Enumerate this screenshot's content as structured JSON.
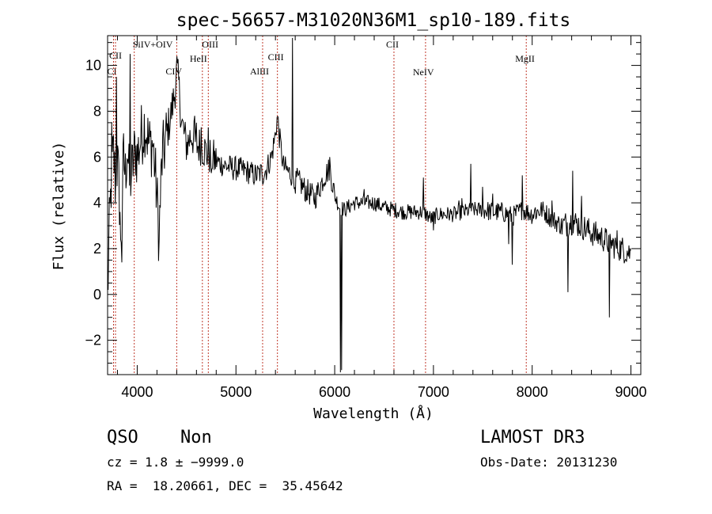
{
  "chart_data": {
    "type": "line",
    "title": "spec-56657-M31020N36M1_sp10-189.fits",
    "xlabel": "Wavelength (Å)",
    "ylabel": "Flux (relative)",
    "xlim": [
      3700,
      9100
    ],
    "ylim": [
      -3.5,
      11.3
    ],
    "xticks": [
      4000,
      5000,
      6000,
      7000,
      8000,
      9000
    ],
    "yticks": [
      -2,
      0,
      2,
      4,
      6,
      8,
      10
    ],
    "tick_labels_x": [
      "4000",
      "5000",
      "6000",
      "7000",
      "8000",
      "9000"
    ],
    "tick_labels_y": [
      "−2",
      "0",
      "2",
      "4",
      "6",
      "8",
      "10"
    ],
    "grid": false,
    "series_color": "#000000",
    "line_color": "#c0392b",
    "anchors": [
      [
        3700,
        0.5
      ],
      [
        3720,
        3.0
      ],
      [
        3740,
        5.2
      ],
      [
        3760,
        6.2
      ],
      [
        3780,
        4.8
      ],
      [
        3800,
        5.8
      ],
      [
        3820,
        4.2
      ],
      [
        3840,
        2.5
      ],
      [
        3860,
        6.0
      ],
      [
        3880,
        5.2
      ],
      [
        3900,
        6.6
      ],
      [
        3920,
        4.8
      ],
      [
        3950,
        5.5
      ],
      [
        3980,
        6.4
      ],
      [
        4000,
        6.0
      ],
      [
        4040,
        6.9
      ],
      [
        4080,
        7.5
      ],
      [
        4120,
        6.5
      ],
      [
        4160,
        6.6
      ],
      [
        4200,
        4.2
      ],
      [
        4220,
        2.6
      ],
      [
        4250,
        5.8
      ],
      [
        4300,
        7.0
      ],
      [
        4340,
        7.8
      ],
      [
        4380,
        8.8
      ],
      [
        4400,
        9.8
      ],
      [
        4420,
        9.2
      ],
      [
        4450,
        7.5
      ],
      [
        4500,
        6.5
      ],
      [
        4550,
        7.0
      ],
      [
        4600,
        6.5
      ],
      [
        4650,
        6.5
      ],
      [
        4700,
        6.2
      ],
      [
        4800,
        5.8
      ],
      [
        4900,
        5.6
      ],
      [
        5000,
        5.5
      ],
      [
        5100,
        5.4
      ],
      [
        5200,
        5.2
      ],
      [
        5300,
        5.4
      ],
      [
        5360,
        6.0
      ],
      [
        5400,
        7.0
      ],
      [
        5420,
        7.8
      ],
      [
        5440,
        6.9
      ],
      [
        5480,
        5.6
      ],
      [
        5540,
        5.3
      ],
      [
        5580,
        5.2
      ],
      [
        5620,
        5.0
      ],
      [
        5700,
        4.6
      ],
      [
        5800,
        4.2
      ],
      [
        5900,
        5.2
      ],
      [
        5950,
        5.5
      ],
      [
        6000,
        4.3
      ],
      [
        6050,
        3.8
      ],
      [
        6100,
        3.7
      ],
      [
        6200,
        4.0
      ],
      [
        6300,
        4.0
      ],
      [
        6400,
        4.0
      ],
      [
        6500,
        3.8
      ],
      [
        6600,
        3.7
      ],
      [
        6700,
        3.6
      ],
      [
        6800,
        3.6
      ],
      [
        6900,
        3.6
      ],
      [
        6980,
        3.3
      ],
      [
        7050,
        3.5
      ],
      [
        7200,
        3.5
      ],
      [
        7300,
        3.6
      ],
      [
        7400,
        3.7
      ],
      [
        7500,
        3.7
      ],
      [
        7600,
        3.6
      ],
      [
        7700,
        3.6
      ],
      [
        7800,
        3.4
      ],
      [
        7900,
        3.7
      ],
      [
        8000,
        3.5
      ],
      [
        8100,
        3.7
      ],
      [
        8200,
        3.3
      ],
      [
        8300,
        3.0
      ],
      [
        8400,
        3.2
      ],
      [
        8500,
        3.0
      ],
      [
        8600,
        2.7
      ],
      [
        8700,
        2.5
      ],
      [
        8800,
        2.2
      ],
      [
        8900,
        2.0
      ],
      [
        9000,
        1.8
      ]
    ],
    "spikes": [
      [
        3705,
        0.2
      ],
      [
        3745,
        7.5
      ],
      [
        3790,
        9.5
      ],
      [
        3830,
        2.4
      ],
      [
        3845,
        1.4
      ],
      [
        3930,
        10.5
      ],
      [
        4220,
        2.4
      ],
      [
        4405,
        10.4
      ],
      [
        4580,
        7.8
      ],
      [
        4600,
        7.5
      ],
      [
        4650,
        7.3
      ],
      [
        4720,
        7.3
      ],
      [
        4750,
        5.3
      ],
      [
        4970,
        5.0
      ],
      [
        5270,
        4.8
      ],
      [
        5575,
        11.2
      ],
      [
        5600,
        4.4
      ],
      [
        5700,
        4.1
      ],
      [
        5950,
        6.0
      ],
      [
        6060,
        -3.4
      ],
      [
        6070,
        -3.3
      ],
      [
        6300,
        4.6
      ],
      [
        6900,
        5.1
      ],
      [
        7000,
        2.8
      ],
      [
        7260,
        4.1
      ],
      [
        7290,
        4.2
      ],
      [
        7380,
        5.7
      ],
      [
        7500,
        4.7
      ],
      [
        7600,
        4.4
      ],
      [
        7760,
        2.2
      ],
      [
        7800,
        1.3
      ],
      [
        7900,
        5.2
      ],
      [
        8030,
        3.8
      ],
      [
        8200,
        4.1
      ],
      [
        8360,
        0.1
      ],
      [
        8410,
        5.4
      ],
      [
        8500,
        4.3
      ],
      [
        8780,
        -1.0
      ],
      [
        8800,
        2.0
      ],
      [
        8860,
        2.8
      ]
    ],
    "lines": [
      {
        "name": "CI",
        "wavelength": 3760,
        "label": "CI"
      },
      {
        "name": "CII",
        "wavelength": 3780,
        "label": "CII"
      },
      {
        "name": "SiIV+OIV",
        "wavelength": 3970,
        "label": "SiIV+OIV"
      },
      {
        "name": "CIV",
        "wavelength": 4400,
        "label": "CIV"
      },
      {
        "name": "HeII",
        "wavelength": 4660,
        "label": "HeII"
      },
      {
        "name": "OIII",
        "wavelength": 4720,
        "label": "OIII"
      },
      {
        "name": "AlIII",
        "wavelength": 5270,
        "label": "AlIII"
      },
      {
        "name": "CIII",
        "wavelength": 5420,
        "label": "CIII"
      },
      {
        "name": "CII",
        "wavelength": 6600,
        "label": "CII"
      },
      {
        "name": "NeIV",
        "wavelength": 6920,
        "label": "NeIV"
      },
      {
        "name": "MgII",
        "wavelength": 7940,
        "label": "MgII"
      }
    ]
  },
  "info": {
    "class": "QSO",
    "subclass": "Non",
    "survey": "LAMOST DR3",
    "cz": "cz = 1.8 ± −9999.0",
    "obs_date": "Obs-Date: 20131230",
    "coords": "RA =  18.20661, DEC =  35.45642"
  }
}
